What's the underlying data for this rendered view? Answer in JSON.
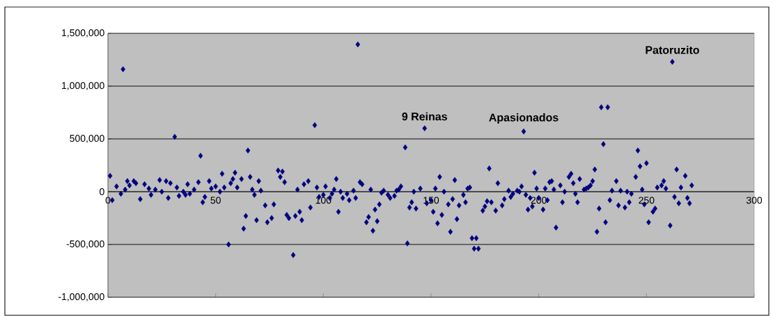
{
  "chart_data": {
    "type": "scatter",
    "marker": "diamond",
    "grid": "y",
    "color": "#000080",
    "xlim": [
      0,
      300
    ],
    "xticks": [
      0,
      50,
      100,
      150,
      200,
      250,
      300
    ],
    "ylim": [
      -1000000,
      1500000
    ],
    "yticks": [
      {
        "value": -1000000,
        "label": "-1,000,000"
      },
      {
        "value": -500000,
        "label": "-500,000"
      },
      {
        "value": 0,
        "label": "0"
      },
      {
        "value": 500000,
        "label": "500,000"
      },
      {
        "value": 1000000,
        "label": "1,000,000"
      },
      {
        "value": 1500000,
        "label": "1,500,000"
      }
    ],
    "x": [
      1,
      2,
      4,
      6,
      7,
      8,
      9,
      10,
      12,
      13,
      15,
      17,
      19,
      20,
      22,
      24,
      25,
      27,
      28,
      29,
      31,
      32,
      33,
      35,
      36,
      37,
      38,
      40,
      42,
      43,
      44,
      45,
      47,
      48,
      50,
      52,
      53,
      54,
      56,
      57,
      58,
      59,
      60,
      62,
      63,
      64,
      65,
      66,
      67,
      68,
      69,
      70,
      71,
      73,
      74,
      76,
      77,
      79,
      80,
      81,
      82,
      83,
      84,
      86,
      87,
      88,
      89,
      90,
      91,
      93,
      94,
      96,
      97,
      98,
      100,
      101,
      103,
      104,
      105,
      106,
      107,
      108,
      109,
      111,
      112,
      114,
      115,
      116,
      117,
      118,
      120,
      121,
      122,
      123,
      124,
      125,
      126,
      127,
      128,
      130,
      131,
      133,
      134,
      135,
      136,
      138,
      139,
      140,
      141,
      142,
      143,
      145,
      147,
      148,
      150,
      151,
      152,
      153,
      154,
      155,
      156,
      158,
      159,
      160,
      161,
      162,
      163,
      165,
      166,
      167,
      168,
      169,
      170,
      171,
      172,
      174,
      175,
      176,
      177,
      178,
      180,
      181,
      183,
      184,
      186,
      187,
      188,
      190,
      191,
      192,
      193,
      194,
      195,
      196,
      197,
      198,
      199,
      200,
      202,
      203,
      204,
      205,
      206,
      207,
      208,
      210,
      211,
      212,
      214,
      215,
      216,
      217,
      218,
      219,
      221,
      222,
      223,
      224,
      225,
      226,
      227,
      228,
      229,
      230,
      231,
      232,
      233,
      234,
      236,
      237,
      238,
      240,
      241,
      242,
      243,
      245,
      246,
      247,
      248,
      249,
      250,
      251,
      253,
      254,
      255,
      257,
      258,
      259,
      261,
      262,
      263,
      264,
      265,
      266,
      268,
      269,
      270,
      271
    ],
    "values": [
      150000,
      -80000,
      50000,
      -20000,
      1160000,
      20000,
      100000,
      60000,
      100000,
      80000,
      -70000,
      70000,
      30000,
      -30000,
      20000,
      110000,
      0,
      100000,
      -60000,
      80000,
      520000,
      40000,
      -40000,
      0,
      -30000,
      70000,
      -20000,
      20000,
      90000,
      340000,
      -100000,
      -50000,
      100000,
      30000,
      50000,
      0,
      170000,
      40000,
      -500000,
      80000,
      120000,
      180000,
      40000,
      120000,
      -350000,
      -230000,
      390000,
      140000,
      20000,
      -30000,
      -270000,
      100000,
      10000,
      -130000,
      -290000,
      -250000,
      -120000,
      200000,
      140000,
      190000,
      90000,
      -220000,
      -250000,
      -600000,
      -230000,
      20000,
      -190000,
      -270000,
      70000,
      100000,
      -150000,
      630000,
      40000,
      -50000,
      -30000,
      50000,
      -60000,
      -20000,
      20000,
      120000,
      -190000,
      0,
      -60000,
      -20000,
      -80000,
      10000,
      -60000,
      1395000,
      90000,
      70000,
      -290000,
      -240000,
      20000,
      -370000,
      -170000,
      -280000,
      -120000,
      -10000,
      10000,
      -30000,
      -60000,
      -40000,
      10000,
      20000,
      50000,
      420000,
      -490000,
      -150000,
      -100000,
      0,
      -160000,
      30000,
      600000,
      -110000,
      -80000,
      -190000,
      30000,
      -300000,
      140000,
      -220000,
      0,
      -120000,
      -380000,
      -70000,
      110000,
      -260000,
      -130000,
      -30000,
      -100000,
      30000,
      40000,
      -440000,
      -540000,
      -440000,
      -540000,
      -180000,
      -140000,
      -90000,
      220000,
      -100000,
      -180000,
      80000,
      -130000,
      -70000,
      10000,
      -50000,
      -20000,
      10000,
      0,
      50000,
      570000,
      -30000,
      -170000,
      -60000,
      -140000,
      180000,
      30000,
      -60000,
      -170000,
      30000,
      -80000,
      90000,
      100000,
      20000,
      -340000,
      60000,
      -100000,
      0,
      140000,
      170000,
      80000,
      -20000,
      -100000,
      120000,
      20000,
      30000,
      40000,
      60000,
      100000,
      210000,
      -380000,
      -160000,
      800000,
      450000,
      -290000,
      800000,
      -80000,
      10000,
      100000,
      -130000,
      10000,
      -150000,
      0,
      -100000,
      -20000,
      140000,
      390000,
      240000,
      20000,
      -120000,
      270000,
      -290000,
      -190000,
      -160000,
      40000,
      60000,
      100000,
      30000,
      -320000,
      1230000,
      -50000,
      210000,
      -110000,
      40000,
      150000,
      -60000,
      -110000,
      60000
    ],
    "annotations": [
      {
        "text": "9 Reinas",
        "x": 147,
        "y": 600000
      },
      {
        "text": "Apasionados",
        "x": 193,
        "y": 570000
      },
      {
        "text": "Patoruzito",
        "x": 262,
        "y": 1230000
      }
    ]
  }
}
